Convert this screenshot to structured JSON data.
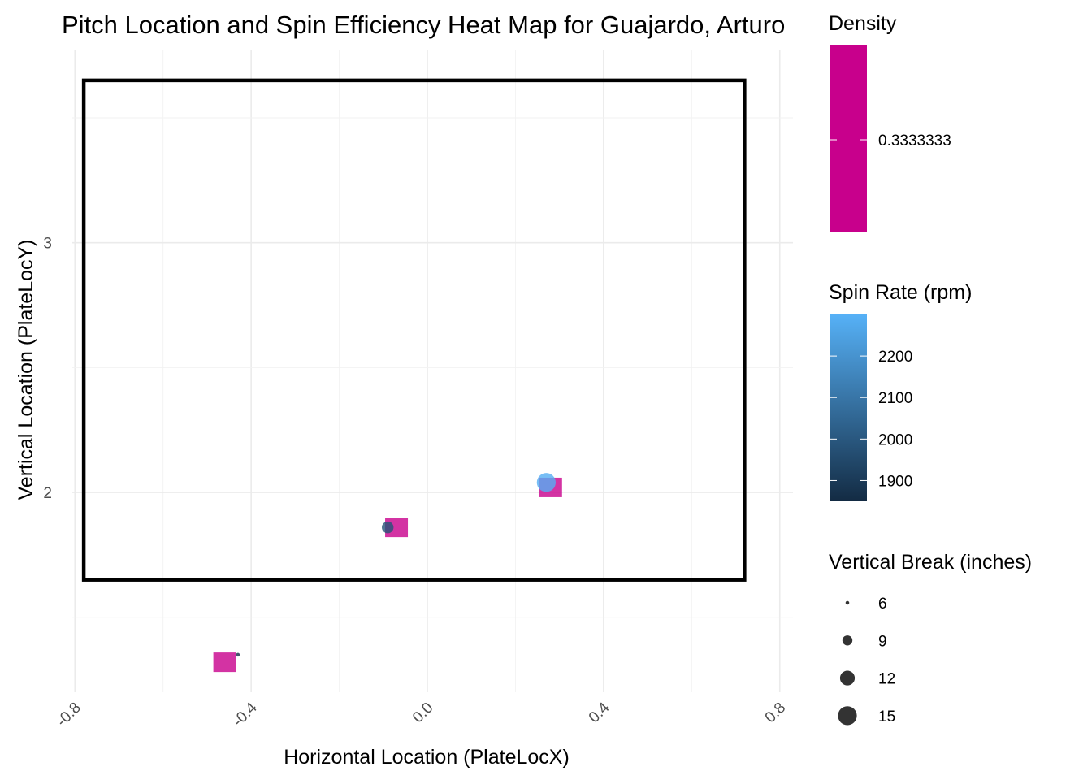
{
  "chart_data": {
    "type": "scatter",
    "title": "Pitch Location and Spin Efficiency Heat Map for Guajardo, Arturo",
    "xlabel": "Horizontal Location (PlateLocX)",
    "ylabel": "Vertical Location (PlateLocY)",
    "xlim": [
      -0.83,
      0.83
    ],
    "ylim": [
      1.2,
      3.77
    ],
    "x_ticks": [
      "-0.8",
      "-0.4",
      "0.0",
      "0.4",
      "0.8"
    ],
    "x_tick_values": [
      -0.8,
      -0.4,
      0.0,
      0.4,
      0.8
    ],
    "y_ticks": [
      "2",
      "3"
    ],
    "y_tick_values": [
      2,
      3
    ],
    "grid": true,
    "strike_zone": {
      "x": [
        -0.78,
        0.72
      ],
      "y": [
        1.65,
        3.65
      ]
    },
    "density_tiles": [
      {
        "x": -0.46,
        "y": 1.32,
        "density": 0.3333333
      },
      {
        "x": -0.07,
        "y": 1.86,
        "density": 0.3333333
      },
      {
        "x": 0.28,
        "y": 2.02,
        "density": 0.3333333
      }
    ],
    "pitches": [
      {
        "x": -0.43,
        "y": 1.35,
        "spin_rate": 1860,
        "vertical_break": 6
      },
      {
        "x": -0.09,
        "y": 1.86,
        "spin_rate": 1980,
        "vertical_break": 10
      },
      {
        "x": 0.27,
        "y": 2.04,
        "spin_rate": 2290,
        "vertical_break": 15
      }
    ],
    "legends": {
      "density": {
        "title": "Density",
        "labels": [
          "0.3333333"
        ],
        "color": "#c8008c"
      },
      "spin": {
        "title": "Spin Rate (rpm)",
        "labels": [
          "2200",
          "2100",
          "2000",
          "1900"
        ],
        "values": [
          2200,
          2100,
          2000,
          1900
        ],
        "range": [
          1850,
          2300
        ],
        "low_color": "#132b43",
        "high_color": "#56b1f7"
      },
      "size": {
        "title": "Vertical Break (inches)",
        "labels": [
          "6",
          "9",
          "12",
          "15"
        ],
        "values": [
          6,
          9,
          12,
          15
        ]
      }
    },
    "legend_position": "right"
  }
}
